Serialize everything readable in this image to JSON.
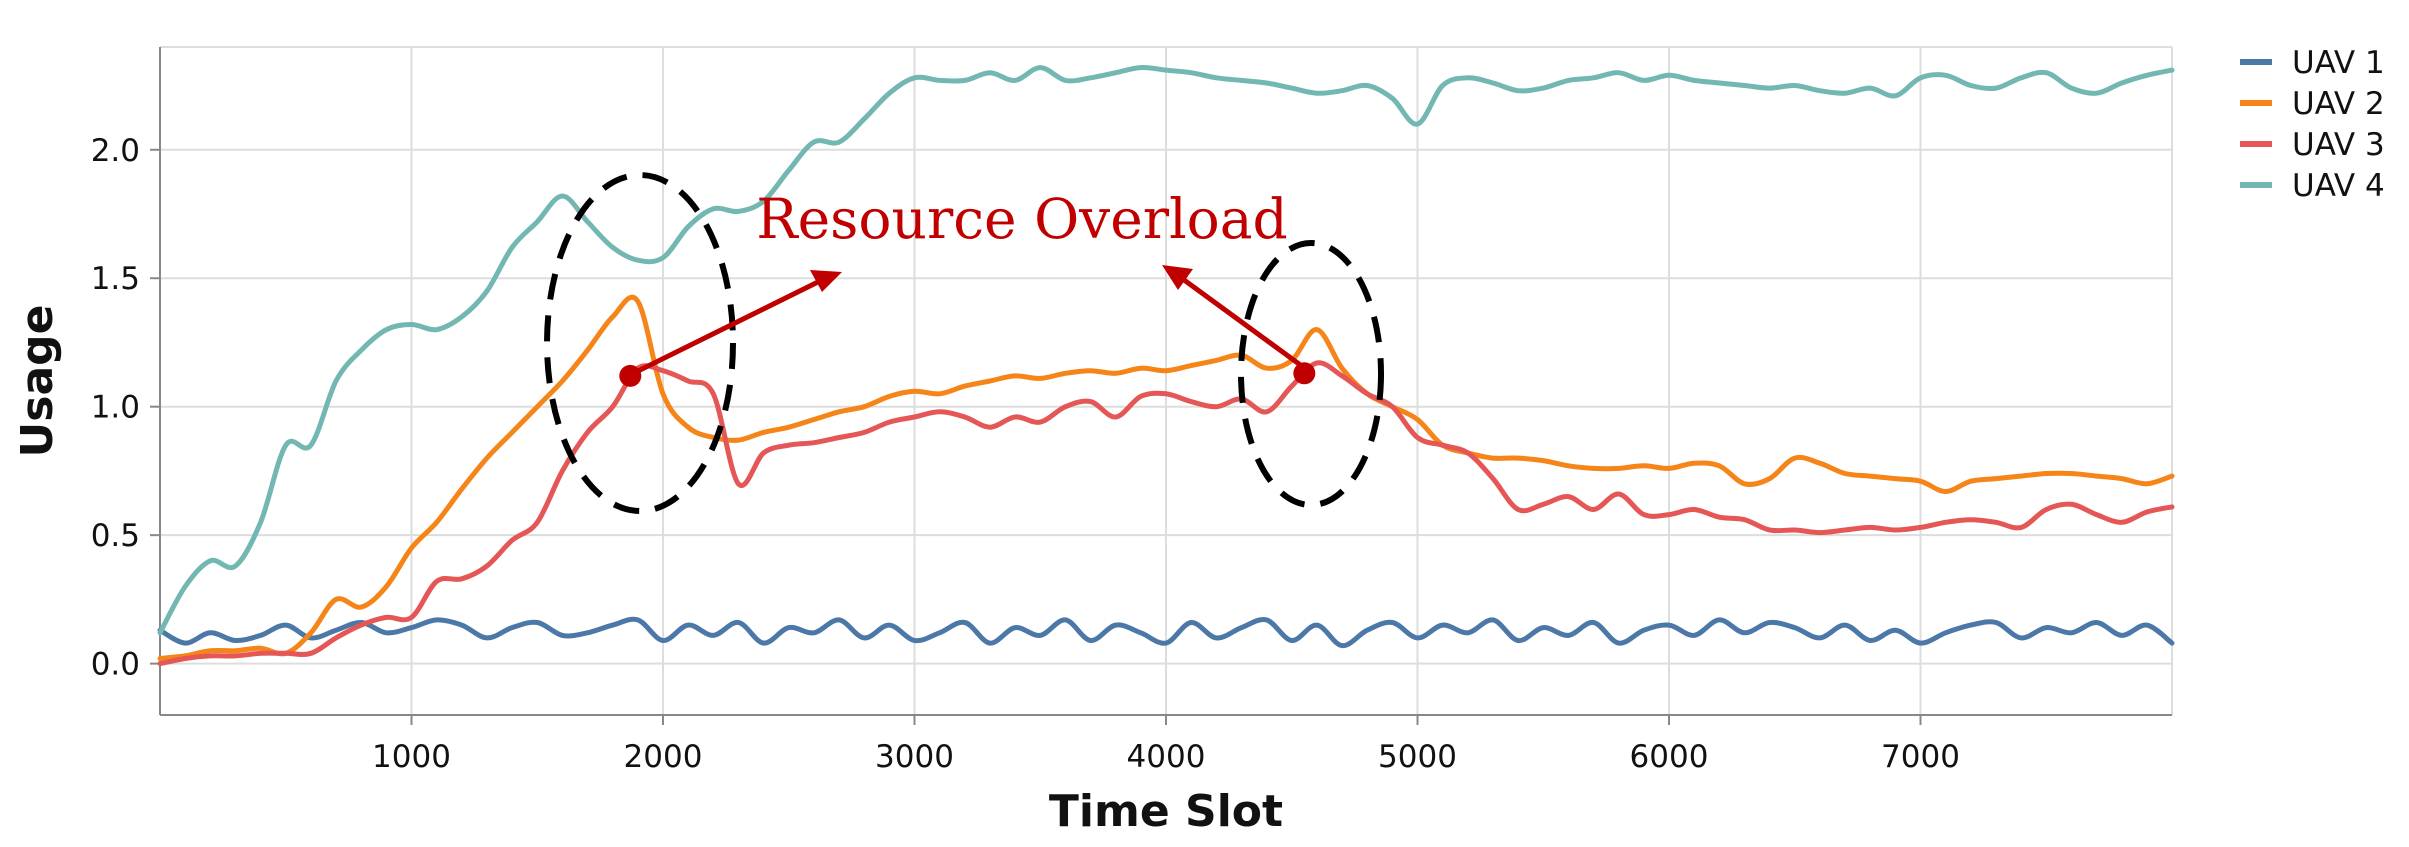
{
  "chart_data": {
    "type": "line",
    "title": "",
    "xlabel": "Time Slot",
    "ylabel": "Usage",
    "xlim": [
      0,
      8000
    ],
    "ylim": [
      -0.2,
      2.4
    ],
    "x_ticks": [
      1000,
      2000,
      3000,
      4000,
      5000,
      6000,
      7000
    ],
    "x_tick_labels": [
      "1000",
      "2000",
      "3000",
      "4000",
      "5000",
      "6000",
      "7000"
    ],
    "y_ticks": [
      0.0,
      0.5,
      1.0,
      1.5,
      2.0
    ],
    "y_tick_labels": [
      "0.0",
      "0.5",
      "1.0",
      "1.5",
      "2.0"
    ],
    "grid": true,
    "legend_position": "top-right",
    "x": [
      0,
      100,
      200,
      300,
      400,
      500,
      600,
      700,
      800,
      900,
      1000,
      1100,
      1200,
      1300,
      1400,
      1500,
      1600,
      1700,
      1800,
      1900,
      2000,
      2100,
      2200,
      2300,
      2400,
      2500,
      2600,
      2700,
      2800,
      2900,
      3000,
      3100,
      3200,
      3300,
      3400,
      3500,
      3600,
      3700,
      3800,
      3900,
      4000,
      4100,
      4200,
      4300,
      4400,
      4500,
      4600,
      4700,
      4800,
      4900,
      5000,
      5100,
      5200,
      5300,
      5400,
      5500,
      5600,
      5700,
      5800,
      5900,
      6000,
      6100,
      6200,
      6300,
      6400,
      6500,
      6600,
      6700,
      6800,
      6900,
      7000,
      7100,
      7200,
      7300,
      7400,
      7500,
      7600,
      7700,
      7800,
      7900,
      8000
    ],
    "series": [
      {
        "name": "UAV 1",
        "color": "#4c78a8",
        "values": [
          0.13,
          0.08,
          0.12,
          0.09,
          0.11,
          0.15,
          0.1,
          0.13,
          0.16,
          0.12,
          0.14,
          0.17,
          0.15,
          0.1,
          0.14,
          0.16,
          0.11,
          0.12,
          0.15,
          0.17,
          0.09,
          0.15,
          0.11,
          0.16,
          0.08,
          0.14,
          0.12,
          0.17,
          0.1,
          0.15,
          0.09,
          0.12,
          0.16,
          0.08,
          0.14,
          0.11,
          0.17,
          0.09,
          0.15,
          0.12,
          0.08,
          0.16,
          0.1,
          0.14,
          0.17,
          0.09,
          0.15,
          0.07,
          0.13,
          0.16,
          0.1,
          0.15,
          0.12,
          0.17,
          0.09,
          0.14,
          0.11,
          0.16,
          0.08,
          0.13,
          0.15,
          0.11,
          0.17,
          0.12,
          0.16,
          0.14,
          0.1,
          0.15,
          0.09,
          0.13,
          0.08,
          0.12,
          0.15,
          0.16,
          0.1,
          0.14,
          0.12,
          0.16,
          0.11,
          0.15,
          0.08
        ]
      },
      {
        "name": "UAV 2",
        "color": "#f58518",
        "values": [
          0.02,
          0.03,
          0.05,
          0.05,
          0.06,
          0.04,
          0.12,
          0.25,
          0.22,
          0.3,
          0.45,
          0.55,
          0.68,
          0.8,
          0.9,
          1.0,
          1.1,
          1.22,
          1.35,
          1.41,
          1.05,
          0.92,
          0.88,
          0.87,
          0.9,
          0.92,
          0.95,
          0.98,
          1.0,
          1.04,
          1.06,
          1.05,
          1.08,
          1.1,
          1.12,
          1.11,
          1.13,
          1.14,
          1.13,
          1.15,
          1.14,
          1.16,
          1.18,
          1.2,
          1.15,
          1.18,
          1.3,
          1.15,
          1.05,
          1.0,
          0.95,
          0.85,
          0.82,
          0.8,
          0.8,
          0.79,
          0.77,
          0.76,
          0.76,
          0.77,
          0.76,
          0.78,
          0.77,
          0.7,
          0.72,
          0.8,
          0.78,
          0.74,
          0.73,
          0.72,
          0.71,
          0.67,
          0.71,
          0.72,
          0.73,
          0.74,
          0.74,
          0.73,
          0.72,
          0.7,
          0.73
        ]
      },
      {
        "name": "UAV 3",
        "color": "#e45756",
        "values": [
          0.0,
          0.02,
          0.03,
          0.03,
          0.04,
          0.04,
          0.04,
          0.1,
          0.15,
          0.18,
          0.18,
          0.32,
          0.33,
          0.38,
          0.48,
          0.55,
          0.75,
          0.9,
          1.0,
          1.15,
          1.14,
          1.1,
          1.05,
          0.7,
          0.82,
          0.85,
          0.86,
          0.88,
          0.9,
          0.94,
          0.96,
          0.98,
          0.96,
          0.92,
          0.96,
          0.94,
          1.0,
          1.02,
          0.96,
          1.04,
          1.05,
          1.02,
          1.0,
          1.03,
          0.98,
          1.08,
          1.17,
          1.12,
          1.05,
          1.0,
          0.88,
          0.85,
          0.82,
          0.72,
          0.6,
          0.62,
          0.65,
          0.6,
          0.66,
          0.58,
          0.58,
          0.6,
          0.57,
          0.56,
          0.52,
          0.52,
          0.51,
          0.52,
          0.53,
          0.52,
          0.53,
          0.55,
          0.56,
          0.55,
          0.53,
          0.6,
          0.62,
          0.58,
          0.55,
          0.59,
          0.61
        ]
      },
      {
        "name": "UAV 4",
        "color": "#72b7b2",
        "values": [
          0.12,
          0.3,
          0.4,
          0.38,
          0.55,
          0.85,
          0.85,
          1.1,
          1.22,
          1.3,
          1.32,
          1.3,
          1.35,
          1.45,
          1.62,
          1.72,
          1.82,
          1.72,
          1.62,
          1.57,
          1.58,
          1.7,
          1.77,
          1.76,
          1.8,
          1.92,
          2.03,
          2.03,
          2.12,
          2.22,
          2.28,
          2.27,
          2.27,
          2.3,
          2.27,
          2.32,
          2.27,
          2.28,
          2.3,
          2.32,
          2.31,
          2.3,
          2.28,
          2.27,
          2.26,
          2.24,
          2.22,
          2.23,
          2.25,
          2.2,
          2.1,
          2.25,
          2.28,
          2.26,
          2.23,
          2.24,
          2.27,
          2.28,
          2.3,
          2.27,
          2.29,
          2.27,
          2.26,
          2.25,
          2.24,
          2.25,
          2.23,
          2.22,
          2.24,
          2.21,
          2.28,
          2.29,
          2.25,
          2.24,
          2.28,
          2.3,
          2.24,
          2.22,
          2.26,
          2.29,
          2.31
        ]
      }
    ],
    "annotations": [
      {
        "text": "Resource Overload",
        "color": "#c00000",
        "points": [
          {
            "x": 1870,
            "y": 1.12
          },
          {
            "x": 4550,
            "y": 1.13
          }
        ]
      }
    ]
  }
}
